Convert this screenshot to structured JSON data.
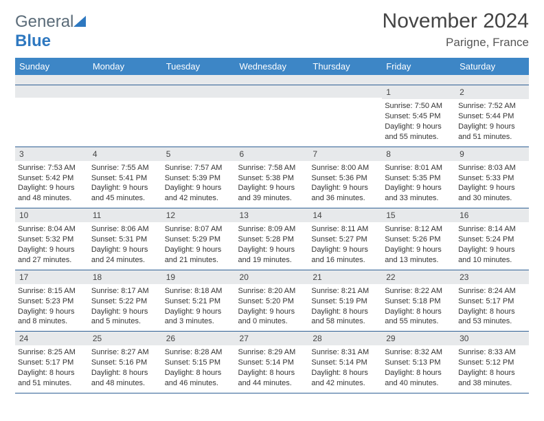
{
  "brand": {
    "part1": "General",
    "part2": "Blue"
  },
  "title": {
    "month": "November 2024",
    "location": "Parigne, France"
  },
  "columns": [
    "Sunday",
    "Monday",
    "Tuesday",
    "Wednesday",
    "Thursday",
    "Friday",
    "Saturday"
  ],
  "colors": {
    "header_bg": "#3d86c6",
    "header_text": "#ffffff",
    "row_divider": "#2e5f94",
    "daynum_bg": "#e7e9eb",
    "brand_gray": "#5a6b78",
    "brand_blue": "#2e78c0"
  },
  "weeks": [
    [
      {
        "n": "",
        "sunrise": "",
        "sunset": "",
        "daylight": ""
      },
      {
        "n": "",
        "sunrise": "",
        "sunset": "",
        "daylight": ""
      },
      {
        "n": "",
        "sunrise": "",
        "sunset": "",
        "daylight": ""
      },
      {
        "n": "",
        "sunrise": "",
        "sunset": "",
        "daylight": ""
      },
      {
        "n": "",
        "sunrise": "",
        "sunset": "",
        "daylight": ""
      },
      {
        "n": "1",
        "sunrise": "Sunrise: 7:50 AM",
        "sunset": "Sunset: 5:45 PM",
        "daylight": "Daylight: 9 hours and 55 minutes."
      },
      {
        "n": "2",
        "sunrise": "Sunrise: 7:52 AM",
        "sunset": "Sunset: 5:44 PM",
        "daylight": "Daylight: 9 hours and 51 minutes."
      }
    ],
    [
      {
        "n": "3",
        "sunrise": "Sunrise: 7:53 AM",
        "sunset": "Sunset: 5:42 PM",
        "daylight": "Daylight: 9 hours and 48 minutes."
      },
      {
        "n": "4",
        "sunrise": "Sunrise: 7:55 AM",
        "sunset": "Sunset: 5:41 PM",
        "daylight": "Daylight: 9 hours and 45 minutes."
      },
      {
        "n": "5",
        "sunrise": "Sunrise: 7:57 AM",
        "sunset": "Sunset: 5:39 PM",
        "daylight": "Daylight: 9 hours and 42 minutes."
      },
      {
        "n": "6",
        "sunrise": "Sunrise: 7:58 AM",
        "sunset": "Sunset: 5:38 PM",
        "daylight": "Daylight: 9 hours and 39 minutes."
      },
      {
        "n": "7",
        "sunrise": "Sunrise: 8:00 AM",
        "sunset": "Sunset: 5:36 PM",
        "daylight": "Daylight: 9 hours and 36 minutes."
      },
      {
        "n": "8",
        "sunrise": "Sunrise: 8:01 AM",
        "sunset": "Sunset: 5:35 PM",
        "daylight": "Daylight: 9 hours and 33 minutes."
      },
      {
        "n": "9",
        "sunrise": "Sunrise: 8:03 AM",
        "sunset": "Sunset: 5:33 PM",
        "daylight": "Daylight: 9 hours and 30 minutes."
      }
    ],
    [
      {
        "n": "10",
        "sunrise": "Sunrise: 8:04 AM",
        "sunset": "Sunset: 5:32 PM",
        "daylight": "Daylight: 9 hours and 27 minutes."
      },
      {
        "n": "11",
        "sunrise": "Sunrise: 8:06 AM",
        "sunset": "Sunset: 5:31 PM",
        "daylight": "Daylight: 9 hours and 24 minutes."
      },
      {
        "n": "12",
        "sunrise": "Sunrise: 8:07 AM",
        "sunset": "Sunset: 5:29 PM",
        "daylight": "Daylight: 9 hours and 21 minutes."
      },
      {
        "n": "13",
        "sunrise": "Sunrise: 8:09 AM",
        "sunset": "Sunset: 5:28 PM",
        "daylight": "Daylight: 9 hours and 19 minutes."
      },
      {
        "n": "14",
        "sunrise": "Sunrise: 8:11 AM",
        "sunset": "Sunset: 5:27 PM",
        "daylight": "Daylight: 9 hours and 16 minutes."
      },
      {
        "n": "15",
        "sunrise": "Sunrise: 8:12 AM",
        "sunset": "Sunset: 5:26 PM",
        "daylight": "Daylight: 9 hours and 13 minutes."
      },
      {
        "n": "16",
        "sunrise": "Sunrise: 8:14 AM",
        "sunset": "Sunset: 5:24 PM",
        "daylight": "Daylight: 9 hours and 10 minutes."
      }
    ],
    [
      {
        "n": "17",
        "sunrise": "Sunrise: 8:15 AM",
        "sunset": "Sunset: 5:23 PM",
        "daylight": "Daylight: 9 hours and 8 minutes."
      },
      {
        "n": "18",
        "sunrise": "Sunrise: 8:17 AM",
        "sunset": "Sunset: 5:22 PM",
        "daylight": "Daylight: 9 hours and 5 minutes."
      },
      {
        "n": "19",
        "sunrise": "Sunrise: 8:18 AM",
        "sunset": "Sunset: 5:21 PM",
        "daylight": "Daylight: 9 hours and 3 minutes."
      },
      {
        "n": "20",
        "sunrise": "Sunrise: 8:20 AM",
        "sunset": "Sunset: 5:20 PM",
        "daylight": "Daylight: 9 hours and 0 minutes."
      },
      {
        "n": "21",
        "sunrise": "Sunrise: 8:21 AM",
        "sunset": "Sunset: 5:19 PM",
        "daylight": "Daylight: 8 hours and 58 minutes."
      },
      {
        "n": "22",
        "sunrise": "Sunrise: 8:22 AM",
        "sunset": "Sunset: 5:18 PM",
        "daylight": "Daylight: 8 hours and 55 minutes."
      },
      {
        "n": "23",
        "sunrise": "Sunrise: 8:24 AM",
        "sunset": "Sunset: 5:17 PM",
        "daylight": "Daylight: 8 hours and 53 minutes."
      }
    ],
    [
      {
        "n": "24",
        "sunrise": "Sunrise: 8:25 AM",
        "sunset": "Sunset: 5:17 PM",
        "daylight": "Daylight: 8 hours and 51 minutes."
      },
      {
        "n": "25",
        "sunrise": "Sunrise: 8:27 AM",
        "sunset": "Sunset: 5:16 PM",
        "daylight": "Daylight: 8 hours and 48 minutes."
      },
      {
        "n": "26",
        "sunrise": "Sunrise: 8:28 AM",
        "sunset": "Sunset: 5:15 PM",
        "daylight": "Daylight: 8 hours and 46 minutes."
      },
      {
        "n": "27",
        "sunrise": "Sunrise: 8:29 AM",
        "sunset": "Sunset: 5:14 PM",
        "daylight": "Daylight: 8 hours and 44 minutes."
      },
      {
        "n": "28",
        "sunrise": "Sunrise: 8:31 AM",
        "sunset": "Sunset: 5:14 PM",
        "daylight": "Daylight: 8 hours and 42 minutes."
      },
      {
        "n": "29",
        "sunrise": "Sunrise: 8:32 AM",
        "sunset": "Sunset: 5:13 PM",
        "daylight": "Daylight: 8 hours and 40 minutes."
      },
      {
        "n": "30",
        "sunrise": "Sunrise: 8:33 AM",
        "sunset": "Sunset: 5:12 PM",
        "daylight": "Daylight: 8 hours and 38 minutes."
      }
    ]
  ]
}
